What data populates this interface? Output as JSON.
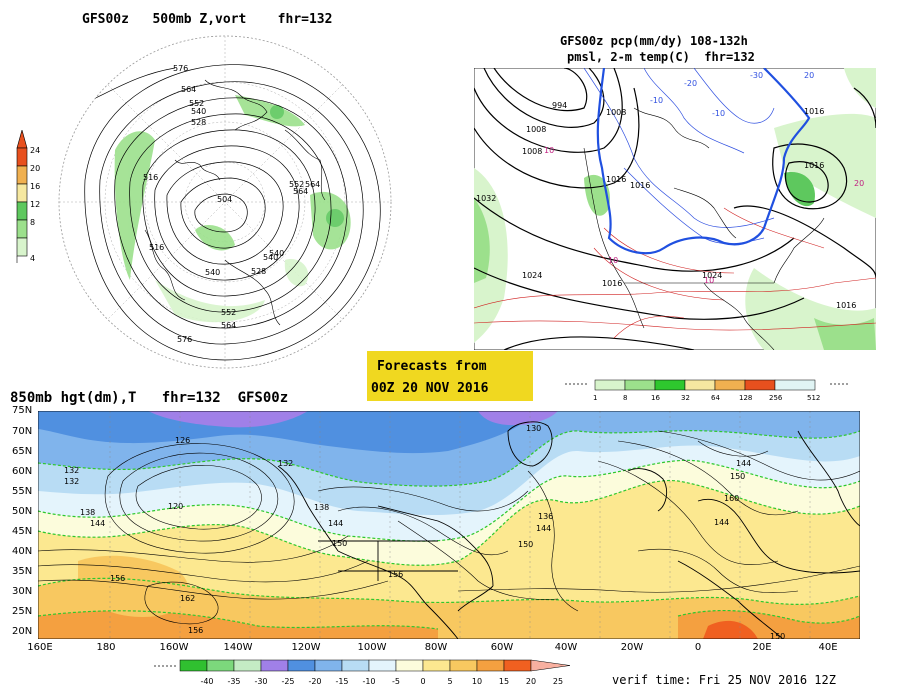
{
  "panel_top_left": {
    "title": "GFS00z   500mb Z,vort    fhr=132",
    "contour_labels": [
      "576",
      "564",
      "552",
      "540",
      "528",
      "516",
      "504",
      "552",
      "564",
      "540",
      "528",
      "516",
      "540",
      "552",
      "564",
      "576",
      "540",
      "564"
    ],
    "colorbar": {
      "values": [
        "24",
        "20",
        "16",
        "12",
        "8",
        "4"
      ],
      "colors": [
        "#e8501e",
        "#f0b050",
        "#f6e8a0",
        "#5ec85e",
        "#9ce08c",
        "#d8f4cc"
      ]
    }
  },
  "panel_top_right": {
    "title_line1": "GFS00z pcp(mm/dy) 108-132h",
    "title_line2": "pmsl, 2-m temp(C)  fhr=132",
    "contour_labels": [
      "994",
      "1008",
      "1008",
      "1016",
      "1016",
      "1016",
      "1024",
      "1024",
      "1016",
      "1016",
      "1008",
      "1016",
      "-10",
      "-10",
      "-20",
      "-30",
      "10",
      "10",
      "10",
      "20",
      "20",
      "1032"
    ],
    "colorbar": {
      "values": [
        "1",
        "8",
        "16",
        "32",
        "64",
        "128",
        "256",
        "512"
      ],
      "colors": [
        "#d8f4cc",
        "#9ce08c",
        "#2ec82e",
        "#f6e8a0",
        "#f0b050",
        "#e8501e",
        "#e0f4f4"
      ]
    }
  },
  "banner": {
    "line1": "Forecasts from",
    "line2": "00Z 20 NOV 2016"
  },
  "panel_bottom": {
    "title": "850mb hgt(dm),T   fhr=132  GFS00z",
    "lat_labels": [
      "75N",
      "70N",
      "65N",
      "60N",
      "55N",
      "50N",
      "45N",
      "40N",
      "35N",
      "30N",
      "25N",
      "20N"
    ],
    "lon_labels": [
      "160E",
      "180",
      "160W",
      "140W",
      "120W",
      "100W",
      "80W",
      "60W",
      "40W",
      "20W",
      "0",
      "20E",
      "40E"
    ],
    "contour_labels": [
      "126",
      "132",
      "132",
      "138",
      "144",
      "156",
      "120",
      "132",
      "138",
      "144",
      "150",
      "156",
      "162",
      "156",
      "130",
      "136",
      "144",
      "150",
      "144",
      "150",
      "160",
      "144",
      "150"
    ],
    "colorbar": {
      "values": [
        "-40",
        "-35",
        "-30",
        "-25",
        "-20",
        "-15",
        "-10",
        "-5",
        "0",
        "5",
        "10",
        "15",
        "20",
        "25"
      ],
      "colors": [
        "#30c030",
        "#7cd87c",
        "#c4ecc4",
        "#a080e8",
        "#5090e0",
        "#80b4ec",
        "#b8dcf4",
        "#e4f4fc",
        "#fcfcdc",
        "#fce890",
        "#f8c860",
        "#f4a040",
        "#f06020",
        "#f8b0a0"
      ]
    }
  },
  "verif_time": "verif time: Fri 25 NOV 2016 12Z"
}
